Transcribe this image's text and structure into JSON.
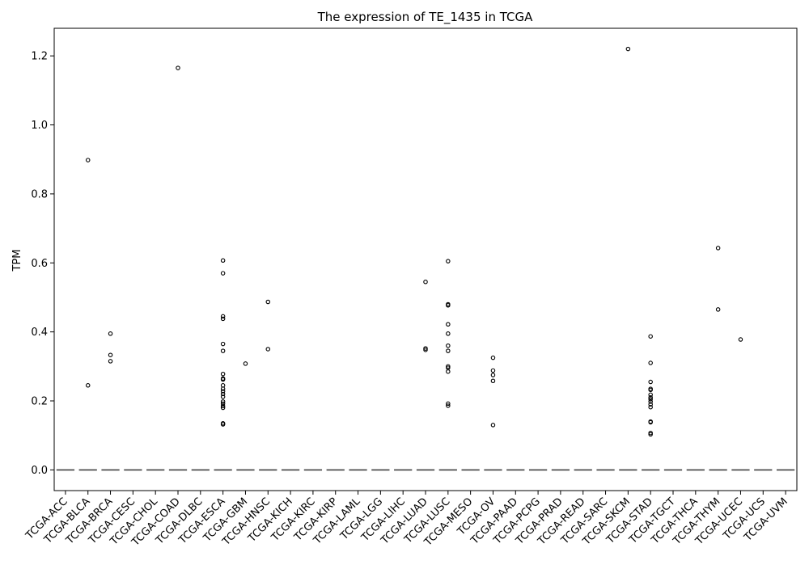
{
  "chart_data": {
    "type": "box",
    "title": "The expression of TE_1435 in TCGA",
    "xlabel": "",
    "ylabel": "TPM",
    "ylim": [
      -0.06,
      1.28
    ],
    "yticks": [
      0.0,
      0.2,
      0.4,
      0.6,
      0.8,
      1.0,
      1.2
    ],
    "ytick_labels": [
      "0.0",
      "0.2",
      "0.4",
      "0.6",
      "0.8",
      "1.0",
      "1.2"
    ],
    "grid": false,
    "categories": [
      "TCGA-ACC",
      "TCGA-BLCA",
      "TCGA-BRCA",
      "TCGA-CESC",
      "TCGA-CHOL",
      "TCGA-COAD",
      "TCGA-DLBC",
      "TCGA-ESCA",
      "TCGA-GBM",
      "TCGA-HNSC",
      "TCGA-KICH",
      "TCGA-KIRC",
      "TCGA-KIRP",
      "TCGA-LAML",
      "TCGA-LGG",
      "TCGA-LIHC",
      "TCGA-LUAD",
      "TCGA-LUSC",
      "TCGA-MESO",
      "TCGA-OV",
      "TCGA-PAAD",
      "TCGA-PCPG",
      "TCGA-PRAD",
      "TCGA-READ",
      "TCGA-SARC",
      "TCGA-SKCM",
      "TCGA-STAD",
      "TCGA-TGCT",
      "TCGA-THCA",
      "TCGA-THYM",
      "TCGA-UCEC",
      "TCGA-UCS",
      "TCGA-UVM"
    ],
    "median": [
      0,
      0,
      0,
      0,
      0,
      0,
      0,
      0,
      0,
      0,
      0,
      0,
      0,
      0,
      0,
      0,
      0,
      0,
      0,
      0,
      0,
      0,
      0,
      0,
      0,
      0,
      0,
      0,
      0,
      0,
      0,
      0,
      0
    ],
    "outliers": [
      [],
      [
        0.898,
        0.245
      ],
      [
        0.395,
        0.333,
        0.315
      ],
      [],
      [],
      [
        1.165
      ],
      [],
      [
        0.607,
        0.57,
        0.445,
        0.438,
        0.365,
        0.345,
        0.278,
        0.265,
        0.262,
        0.245,
        0.235,
        0.228,
        0.22,
        0.212,
        0.198,
        0.192,
        0.185,
        0.18,
        0.135,
        0.132
      ],
      [
        0.308
      ],
      [
        0.487,
        0.35
      ],
      [],
      [],
      [],
      [],
      [],
      [],
      [
        0.545,
        0.352,
        0.348
      ],
      [
        0.605,
        0.48,
        0.477,
        0.422,
        0.395,
        0.36,
        0.345,
        0.3,
        0.296,
        0.285,
        0.192,
        0.186
      ],
      [],
      [
        0.325,
        0.288,
        0.275,
        0.258,
        0.13
      ],
      [],
      [],
      [],
      [],
      [],
      [
        1.22
      ],
      [
        0.387,
        0.31,
        0.255,
        0.235,
        0.232,
        0.218,
        0.21,
        0.205,
        0.198,
        0.19,
        0.182,
        0.14,
        0.138,
        0.107,
        0.103
      ],
      [],
      [],
      [
        0.643,
        0.465
      ],
      [
        0.378
      ],
      [],
      []
    ]
  }
}
